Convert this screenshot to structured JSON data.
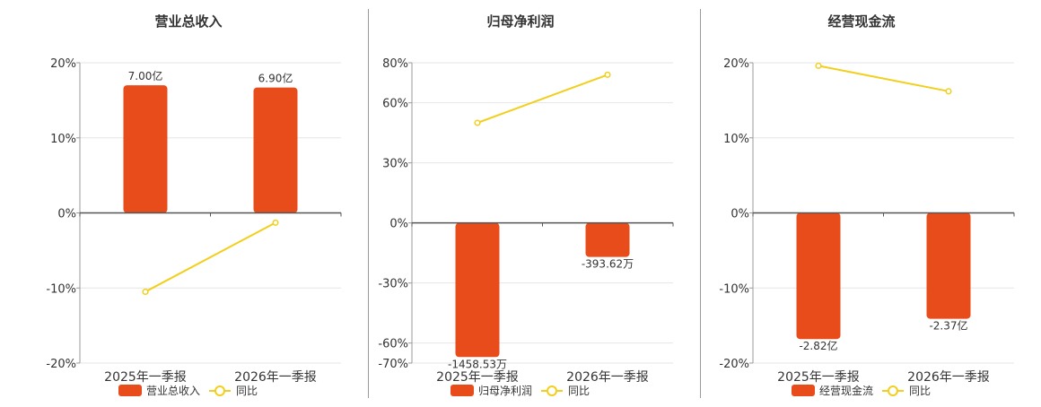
{
  "colors": {
    "bar": "#e84c1b",
    "line": "#f2cf1c",
    "grid": "#e6e6e6",
    "axis": "#333333",
    "text": "#333333"
  },
  "chart_data": [
    {
      "type": "bar",
      "title": "营业总收入",
      "categories": [
        "2025年一季报",
        "2026年一季报"
      ],
      "yticks": [
        "20%",
        "10%",
        "0%",
        "-10%",
        "-20%"
      ],
      "ylim": [
        -20,
        20
      ],
      "series": [
        {
          "name": "营业总收入",
          "kind": "bar",
          "values": [
            17.0,
            16.7
          ],
          "labels": [
            "7.00亿",
            "6.90亿"
          ]
        },
        {
          "name": "同比",
          "kind": "line",
          "values": [
            -10.5,
            -1.3
          ]
        }
      ],
      "legend": "bottom-center",
      "grid": true
    },
    {
      "type": "bar",
      "title": "归母净利润",
      "categories": [
        "2025年一季报",
        "2026年一季报"
      ],
      "yticks": [
        "80%",
        "60%",
        "30%",
        "0%",
        "-30%",
        "-60%",
        "-70%"
      ],
      "ylim": [
        -70,
        80
      ],
      "series": [
        {
          "name": "归母净利润",
          "kind": "bar",
          "values": [
            -67,
            -17
          ],
          "labels": [
            "-1458.53万",
            "-393.62万"
          ]
        },
        {
          "name": "同比",
          "kind": "line",
          "values": [
            50,
            74
          ]
        }
      ],
      "legend": "bottom-center",
      "grid": true
    },
    {
      "type": "bar",
      "title": "经营现金流",
      "categories": [
        "2025年一季报",
        "2026年一季报"
      ],
      "yticks": [
        "20%",
        "10%",
        "0%",
        "-10%",
        "-20%"
      ],
      "ylim": [
        -20,
        20
      ],
      "series": [
        {
          "name": "经营现金流",
          "kind": "bar",
          "values": [
            -16.8,
            -14.1
          ],
          "labels": [
            "-2.82亿",
            "-2.37亿"
          ]
        },
        {
          "name": "同比",
          "kind": "line",
          "values": [
            19.6,
            16.2
          ]
        }
      ],
      "legend": "bottom-center",
      "grid": true
    }
  ]
}
